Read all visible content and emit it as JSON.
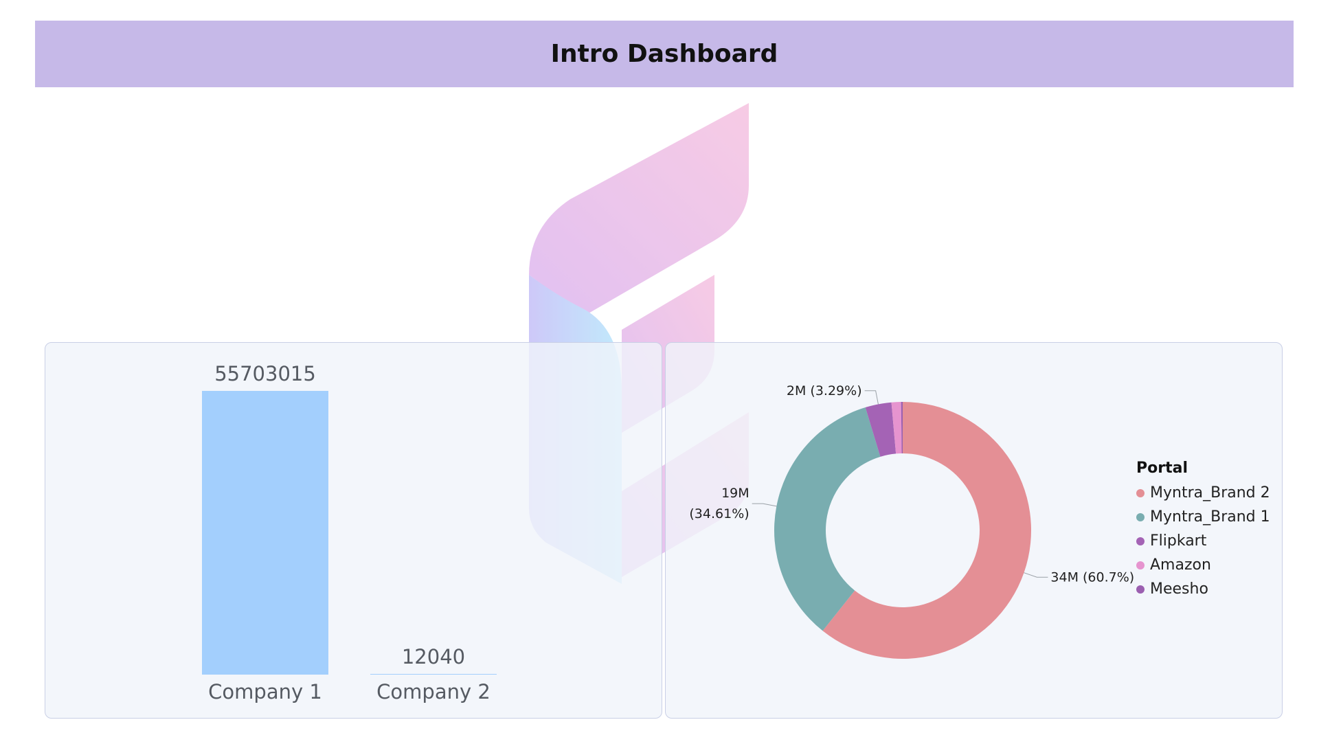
{
  "header": {
    "title": "Intro Dashboard"
  },
  "chart_data": [
    {
      "type": "bar",
      "categories": [
        "Company 1",
        "Company 2"
      ],
      "values": [
        55703015,
        12040
      ],
      "value_labels": [
        "55703015",
        "12040"
      ],
      "color": "#a3cffd",
      "title": "",
      "xlabel": "",
      "ylabel": ""
    },
    {
      "type": "pie",
      "donut": true,
      "legend_title": "Portal",
      "legend_position": "right",
      "categories": [
        "Myntra_Brand 2",
        "Myntra_Brand 1",
        "Flipkart",
        "Amazon",
        "Meesho"
      ],
      "values": [
        60.7,
        34.61,
        3.29,
        1.2,
        0.2
      ],
      "colors": [
        "#e48f95",
        "#79adb0",
        "#a463b5",
        "#e694cf",
        "#9b5fb0"
      ],
      "slice_labels": [
        {
          "category": "Myntra_Brand 2",
          "lines": [
            "34M (60.7%)"
          ]
        },
        {
          "category": "Myntra_Brand 1",
          "lines": [
            "19M",
            "(34.61%)"
          ]
        },
        {
          "category": "Flipkart",
          "lines": [
            "2M (3.29%)"
          ]
        }
      ]
    }
  ]
}
